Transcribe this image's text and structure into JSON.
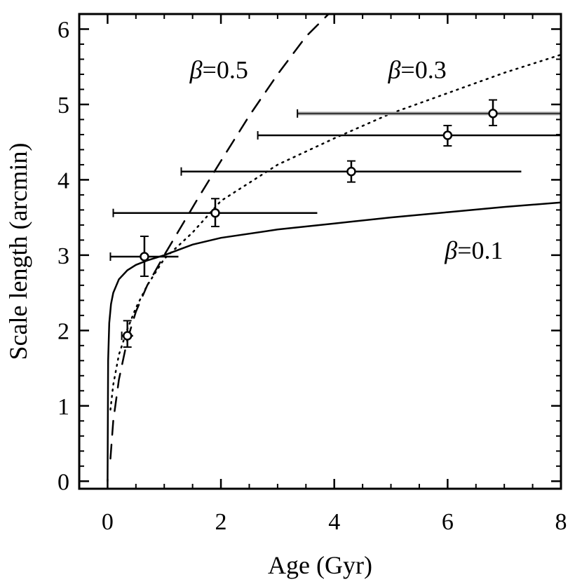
{
  "chart_data": {
    "type": "scatter",
    "xlabel": "Age (Gyr)",
    "ylabel": "Scale length (arcmin)",
    "xlim": [
      -0.5,
      8
    ],
    "ylim": [
      -0.1,
      6.2
    ],
    "x_ticks": [
      "0",
      "2",
      "4",
      "6",
      "8"
    ],
    "y_ticks": [
      "0",
      "1",
      "2",
      "3",
      "4",
      "5",
      "6"
    ],
    "grid": false,
    "legend": "none",
    "points": [
      {
        "x": 0.35,
        "y": 1.93,
        "xerr": [
          0.25,
          0.45
        ],
        "yerr": [
          1.78,
          2.13
        ],
        "highlight": false
      },
      {
        "x": 0.65,
        "y": 2.98,
        "xerr": [
          0.05,
          1.25
        ],
        "yerr": [
          2.72,
          3.25
        ],
        "highlight": false
      },
      {
        "x": 1.9,
        "y": 3.56,
        "xerr": [
          0.1,
          3.7
        ],
        "yerr": [
          3.38,
          3.75
        ],
        "highlight": false
      },
      {
        "x": 4.3,
        "y": 4.11,
        "xerr": [
          1.3,
          7.3
        ],
        "yerr": [
          3.97,
          4.25
        ],
        "highlight": false
      },
      {
        "x": 6.0,
        "y": 4.59,
        "xerr": [
          2.65,
          8.0
        ],
        "yerr": [
          4.45,
          4.72
        ],
        "highlight": false
      },
      {
        "x": 6.8,
        "y": 4.88,
        "xerr": [
          3.35,
          8.0
        ],
        "yerr": [
          4.72,
          5.06
        ],
        "highlight": true
      }
    ],
    "curves": [
      {
        "beta_symbol": "β",
        "beta_value": "=0.1",
        "style": "solid",
        "x": [
          0.0,
          0.01,
          0.03,
          0.06,
          0.1,
          0.2,
          0.35,
          0.5,
          0.7,
          1.0,
          1.5,
          2.0,
          3.0,
          4.0,
          5.0,
          6.0,
          7.0,
          8.0
        ],
        "y": [
          0.0,
          1.6,
          2.1,
          2.35,
          2.5,
          2.68,
          2.8,
          2.87,
          2.93,
          3.0,
          3.14,
          3.23,
          3.34,
          3.42,
          3.5,
          3.57,
          3.64,
          3.7
        ]
      },
      {
        "beta_symbol": "β",
        "beta_value": "=0.3",
        "style": "dotted",
        "x": [
          0.05,
          0.1,
          0.2,
          0.35,
          0.5,
          0.7,
          1.0,
          1.5,
          2.0,
          3.0,
          4.0,
          5.0,
          6.0,
          7.0,
          8.0
        ],
        "y": [
          0.95,
          1.28,
          1.68,
          2.02,
          2.3,
          2.6,
          2.95,
          3.3,
          3.72,
          4.2,
          4.55,
          4.88,
          5.15,
          5.42,
          5.66
        ]
      },
      {
        "beta_symbol": "β",
        "beta_value": "=0.5",
        "style": "dashed",
        "x": [
          0.05,
          0.1,
          0.2,
          0.35,
          0.5,
          0.7,
          1.0,
          1.3,
          1.6,
          2.0,
          2.5,
          3.0,
          3.5,
          3.9
        ],
        "y": [
          0.3,
          0.8,
          1.35,
          1.88,
          2.25,
          2.6,
          3.0,
          3.38,
          3.76,
          4.25,
          4.85,
          5.4,
          5.9,
          6.2
        ]
      }
    ],
    "curve_labels": [
      {
        "curve": 2,
        "x": 1.45,
        "y": 5.35
      },
      {
        "curve": 1,
        "x": 4.95,
        "y": 5.35
      },
      {
        "curve": 0,
        "x": 5.95,
        "y": 2.95
      }
    ],
    "colors": {
      "axis": "#000000",
      "errorbar": "#000000",
      "highlight": "#a0a0a0",
      "marker": "#000000"
    }
  }
}
